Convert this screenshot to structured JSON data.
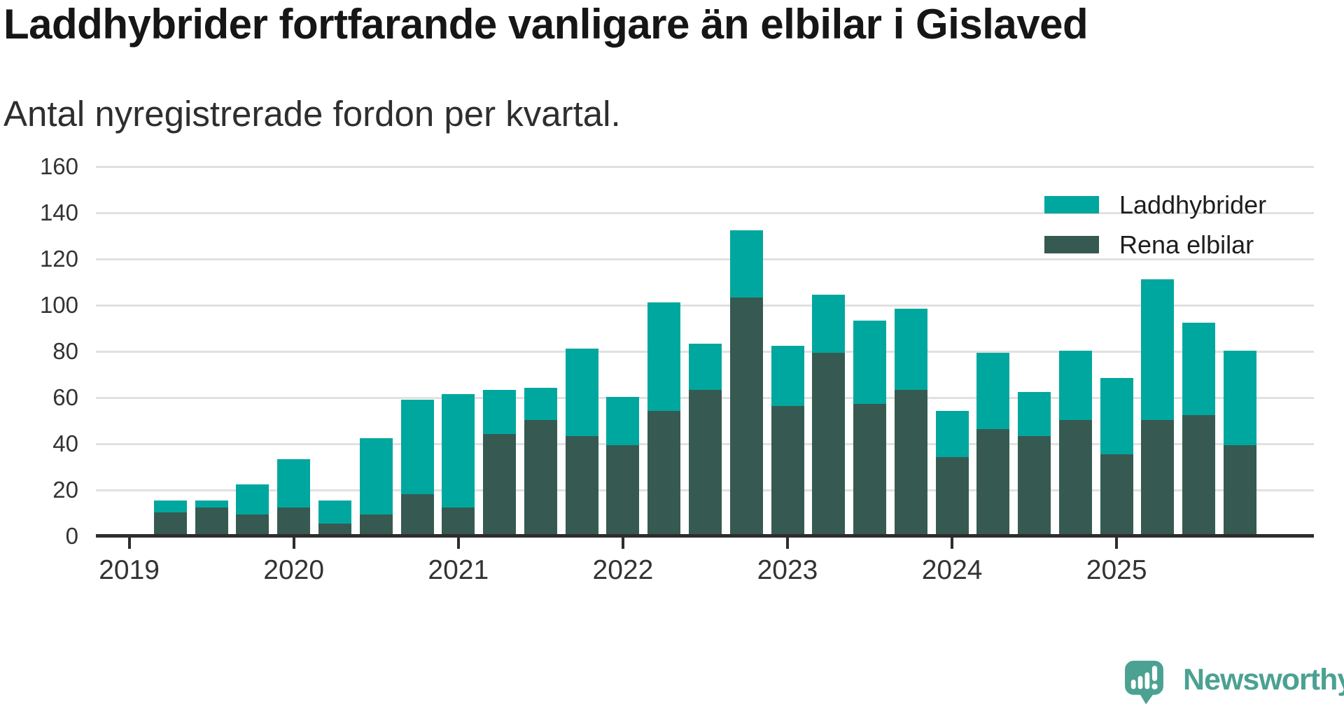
{
  "header": {
    "title": "Laddhybrider fortfarande vanligare än elbilar i Gislaved",
    "subtitle": "Antal nyregistrerade fordon per kvartal."
  },
  "chart_data": {
    "type": "bar",
    "stacked": true,
    "title": "Laddhybrider fortfarande vanligare än elbilar i Gislaved",
    "subtitle": "Antal nyregistrerade fordon per kvartal.",
    "categories": [
      "2019 Q2",
      "2019 Q3",
      "2019 Q4",
      "2020 Q1",
      "2020 Q2",
      "2020 Q3",
      "2020 Q4",
      "2021 Q1",
      "2021 Q2",
      "2021 Q3",
      "2021 Q4",
      "2022 Q1",
      "2022 Q2",
      "2022 Q3",
      "2022 Q4",
      "2023 Q1",
      "2023 Q2",
      "2023 Q3",
      "2023 Q4",
      "2024 Q1",
      "2024 Q2",
      "2024 Q3",
      "2024 Q4",
      "2025 Q1",
      "2025 Q2",
      "2025 Q3",
      "2025 Q4"
    ],
    "series": [
      {
        "name": "Laddhybrider",
        "color": "#00a79e",
        "stack_position": "top",
        "values": [
          5,
          3,
          13,
          21,
          10,
          33,
          41,
          49,
          19,
          14,
          38,
          21,
          47,
          20,
          29,
          26,
          25,
          36,
          35,
          20,
          33,
          19,
          30,
          33,
          61,
          40,
          41
        ]
      },
      {
        "name": "Rena elbilar",
        "color": "#365a51",
        "stack_position": "bottom",
        "values": [
          10,
          12,
          9,
          12,
          5,
          9,
          18,
          12,
          44,
          50,
          43,
          39,
          54,
          63,
          103,
          56,
          79,
          57,
          63,
          34,
          46,
          43,
          50,
          35,
          50,
          52,
          39
        ]
      }
    ],
    "totals": [
      15,
      15,
      22,
      33,
      15,
      42,
      59,
      61,
      63,
      64,
      81,
      60,
      101,
      83,
      132,
      82,
      104,
      93,
      98,
      54,
      79,
      62,
      80,
      68,
      111,
      92,
      80
    ],
    "y_ticks": [
      0,
      20,
      40,
      60,
      80,
      100,
      120,
      140,
      160
    ],
    "ylim": [
      0,
      160
    ],
    "x_tick_labels": [
      "2019",
      "2020",
      "2021",
      "2022",
      "2023",
      "2024",
      "2025"
    ],
    "grid": true,
    "legend_position": "top-right"
  },
  "legend": {
    "items": [
      {
        "label": "Laddhybrider",
        "color": "#00a79e"
      },
      {
        "label": "Rena elbilar",
        "color": "#365a51"
      }
    ]
  },
  "branding": {
    "logo_text": "Newsworthy",
    "logo_color": "#4ba192"
  },
  "colors": {
    "background": "#ffffff",
    "gridline": "#e1e1e1",
    "axis": "#2d2d2d",
    "text": "#333333"
  }
}
